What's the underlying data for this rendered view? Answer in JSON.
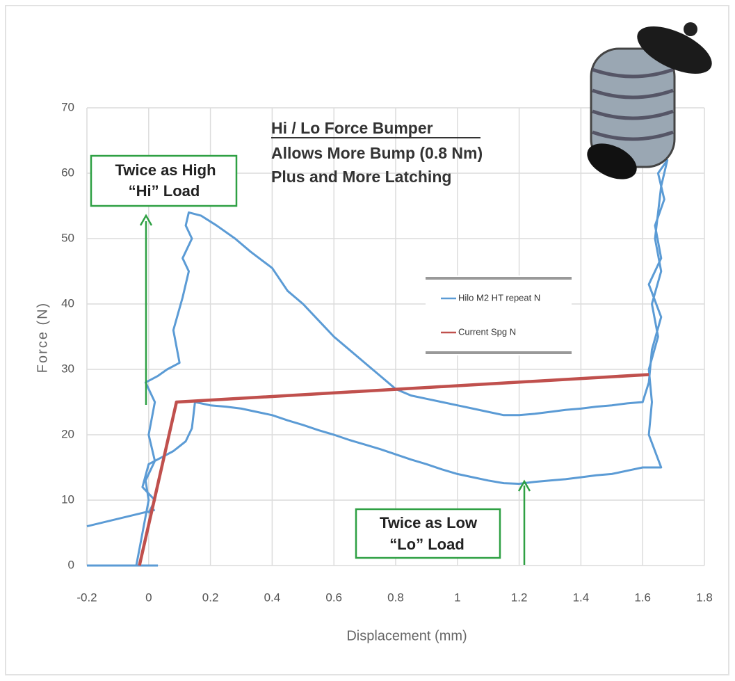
{
  "chart_data": {
    "type": "line",
    "title": "Hi / Lo Force Bumper",
    "subtitle": [
      "Allows More Bump (0.8 Nm)",
      "Plus and More Latching"
    ],
    "annotations": [
      "Twice as High",
      "“Hi”   Load",
      "Twice as Low",
      "“Lo”   Load"
    ],
    "xlabel": "Displacement (mm)",
    "ylabel": "Force (N)",
    "xlim": [
      -0.2,
      1.8
    ],
    "ylim": [
      0,
      70
    ],
    "xticks": [
      -0.2,
      0,
      0.2,
      0.4,
      0.6,
      0.8,
      1,
      1.2,
      1.4,
      1.6,
      1.8
    ],
    "yticks": [
      0,
      10,
      20,
      30,
      40,
      50,
      60,
      70
    ],
    "grid": true,
    "series": [
      {
        "name": "Hilo M2 HT repeat N",
        "color": "#5b9bd5",
        "x": [
          -0.2,
          0.03,
          null,
          -0.2,
          0.02,
          null,
          -0.04,
          -0.02,
          0.0,
          -0.01,
          0.02,
          0.0,
          0.02,
          -0.01,
          0.03,
          0.06,
          0.1,
          0.08,
          0.11,
          0.13,
          0.11,
          0.14,
          0.12,
          0.13,
          0.17,
          0.22,
          0.28,
          0.33,
          0.4,
          0.45,
          0.5,
          0.56,
          0.6,
          0.65,
          0.7,
          0.75,
          0.8,
          0.85,
          0.9,
          0.95,
          1.0,
          1.05,
          1.1,
          1.15,
          1.2,
          1.25,
          1.3,
          1.35,
          1.4,
          1.45,
          1.5,
          1.55,
          1.6,
          1.62,
          1.63,
          1.66,
          1.62,
          1.66,
          1.64,
          1.67,
          1.65,
          1.68,
          1.66,
          1.64,
          1.66,
          1.63,
          1.65,
          1.62,
          1.63,
          1.62,
          1.66,
          1.6,
          1.55,
          1.5,
          1.45,
          1.4,
          1.35,
          1.3,
          1.25,
          1.2,
          1.15,
          1.1,
          1.05,
          1.0,
          0.95,
          0.9,
          0.85,
          0.8,
          0.75,
          0.7,
          0.65,
          0.6,
          0.55,
          0.5,
          0.45,
          0.4,
          0.35,
          0.3,
          0.25,
          0.2,
          0.15,
          0.14,
          0.12,
          0.08,
          0.04,
          0.0,
          -0.02,
          0.02,
          0.0
        ],
        "values": [
          0,
          0,
          null,
          6,
          8.5,
          null,
          0,
          5,
          10,
          13,
          16,
          20,
          25,
          28,
          29,
          30,
          31,
          36,
          41,
          45,
          47,
          50,
          52,
          54,
          53.5,
          52,
          50,
          48,
          45.5,
          42,
          40,
          37,
          35,
          33,
          31,
          29,
          27,
          26,
          25.5,
          25,
          24.5,
          24,
          23.5,
          23,
          23,
          23.2,
          23.5,
          23.8,
          24,
          24.3,
          24.5,
          24.8,
          25,
          28,
          33,
          38,
          43,
          47,
          52,
          56,
          60,
          62,
          58,
          50,
          45,
          40,
          35,
          30,
          25,
          20,
          15,
          15,
          14.5,
          14,
          13.8,
          13.5,
          13.2,
          13,
          12.8,
          12.5,
          12.6,
          13,
          13.5,
          14,
          14.7,
          15.5,
          16.2,
          17,
          17.8,
          18.5,
          19.2,
          20,
          20.7,
          21.5,
          22.2,
          23,
          23.5,
          24,
          24.3,
          24.5,
          25,
          21,
          19,
          17.5,
          16.5,
          15.5,
          12,
          10,
          8
        ]
      },
      {
        "name": "Current Spg N",
        "color": "#c0504d",
        "x": [
          -0.03,
          0.09,
          1.62
        ],
        "values": [
          0,
          25,
          29.2
        ]
      }
    ]
  }
}
